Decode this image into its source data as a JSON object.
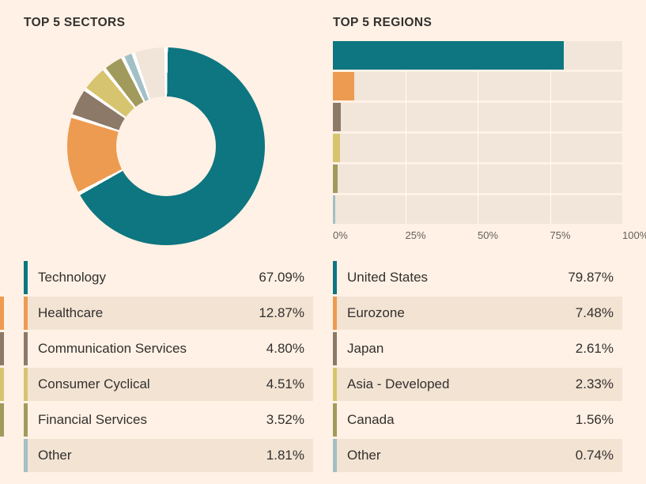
{
  "colors": {
    "background": "#FFF1E5",
    "text": "#33302E",
    "axis_text": "#66605C",
    "bar_track": "#F1E6D9",
    "row_stripe": "#F2E3D3",
    "separator": "#FFFFFF"
  },
  "sectors": {
    "title": "TOP 5 SECTORS",
    "rows": [
      {
        "label": "Technology",
        "value": "67.09%",
        "color": "#0D7680"
      },
      {
        "label": "Healthcare",
        "value": "12.87%",
        "color": "#ED9B51"
      },
      {
        "label": "Communication Services",
        "value": "4.80%",
        "color": "#8C7968"
      },
      {
        "label": "Consumer Cyclical",
        "value": "4.51%",
        "color": "#D7C46E"
      },
      {
        "label": "Financial Services",
        "value": "3.52%",
        "color": "#A19A5D"
      },
      {
        "label": "Other",
        "value": "1.81%",
        "color": "#A2C0C5"
      }
    ]
  },
  "regions": {
    "title": "TOP 5 REGIONS",
    "rows": [
      {
        "label": "United States",
        "value": "79.87%",
        "color": "#0D7680"
      },
      {
        "label": "Eurozone",
        "value": "7.48%",
        "color": "#ED9B51"
      },
      {
        "label": "Japan",
        "value": "2.61%",
        "color": "#8C7968"
      },
      {
        "label": "Asia - Developed",
        "value": "2.33%",
        "color": "#D7C46E"
      },
      {
        "label": "Canada",
        "value": "1.56%",
        "color": "#A19A5D"
      },
      {
        "label": "Other",
        "value": "0.74%",
        "color": "#A2C0C5"
      }
    ]
  },
  "chart_data": [
    {
      "type": "pie",
      "subtype": "donut",
      "title": "TOP 5 SECTORS",
      "labels": [
        "Technology",
        "Healthcare",
        "Communication Services",
        "Consumer Cyclical",
        "Financial Services",
        "Other",
        "Remainder (unlabeled)"
      ],
      "values": [
        67.09,
        12.87,
        4.8,
        4.51,
        3.52,
        1.81,
        5.4
      ],
      "colors": [
        "#0D7680",
        "#ED9B51",
        "#8C7968",
        "#D7C46E",
        "#A19A5D",
        "#A2C0C5",
        "#F0E5D8"
      ],
      "start_angle_deg": 0,
      "direction": "clockwise",
      "legend_position": "table below chart"
    },
    {
      "type": "bar",
      "orientation": "horizontal",
      "title": "TOP 5 REGIONS",
      "categories": [
        "United States",
        "Eurozone",
        "Japan",
        "Asia - Developed",
        "Canada",
        "Other"
      ],
      "values": [
        79.87,
        7.48,
        2.61,
        2.33,
        1.56,
        0.74
      ],
      "colors": [
        "#0D7680",
        "#ED9B51",
        "#8C7968",
        "#D7C46E",
        "#A19A5D",
        "#A2C0C5"
      ],
      "xlim": [
        0,
        100
      ],
      "xticks": [
        "0%",
        "25%",
        "50%",
        "75%",
        "100%"
      ],
      "xtick_positions": [
        0,
        25,
        50,
        75,
        100
      ],
      "gridlines": [
        25,
        50,
        75
      ],
      "grid": true,
      "legend_position": "table below chart"
    }
  ],
  "edge_marks": [
    {
      "row": 1,
      "color": "#ED9B51"
    },
    {
      "row": 2,
      "color": "#8C7968"
    },
    {
      "row": 3,
      "color": "#D7C46E"
    },
    {
      "row": 4,
      "color": "#A19A5D"
    }
  ]
}
